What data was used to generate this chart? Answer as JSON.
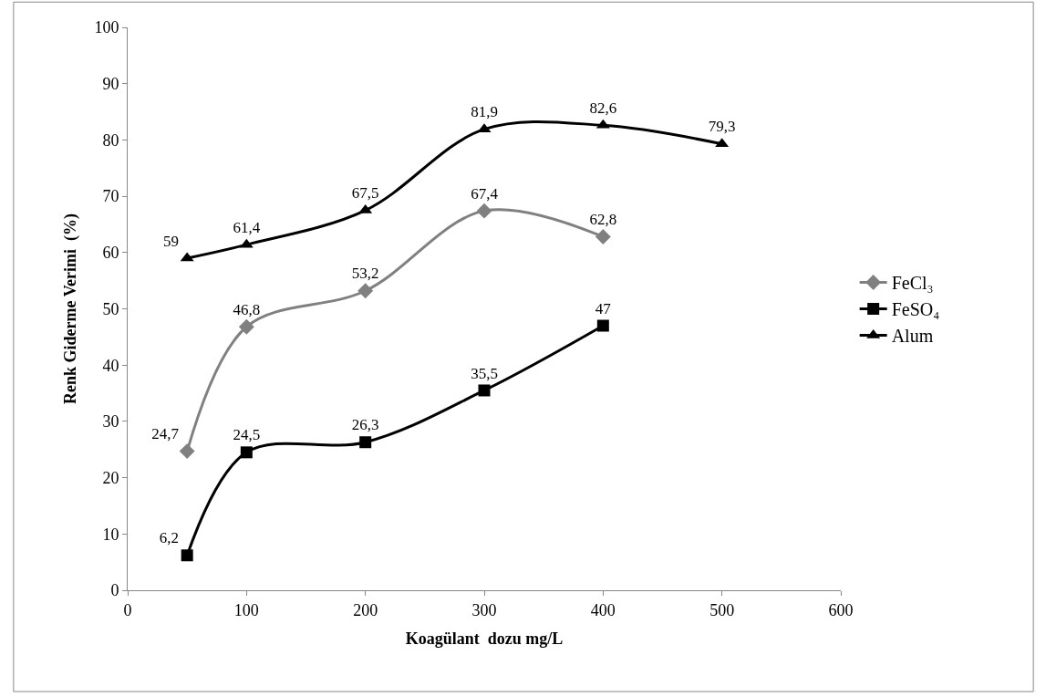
{
  "chart_data": {
    "type": "line",
    "xlabel": "Koagülant  dozu mg/L",
    "ylabel": "Renk Giderme Verimi  (%)",
    "xlim": [
      0,
      600
    ],
    "xticks": [
      0,
      100,
      200,
      300,
      400,
      500,
      600
    ],
    "ylim": [
      0,
      100
    ],
    "yticks": [
      0,
      10,
      20,
      30,
      40,
      50,
      60,
      70,
      80,
      90,
      100
    ],
    "legend": "right",
    "line_style": "solid",
    "series": [
      {
        "name": "FeCl₃",
        "color": "#808080",
        "marker": "diamond",
        "x": [
          50,
          100,
          200,
          300,
          400
        ],
        "values": [
          24.7,
          46.8,
          53.2,
          67.4,
          62.8
        ],
        "value_labels": [
          "24,7",
          "46,8",
          "53,2",
          "67,4",
          "62,8"
        ]
      },
      {
        "name": "FeSO₄",
        "color": "#000000",
        "marker": "square",
        "x": [
          50,
          100,
          200,
          300,
          400
        ],
        "values": [
          6.2,
          24.5,
          26.3,
          35.5,
          47
        ],
        "value_labels": [
          "6,2",
          "24,5",
          "26,3",
          "35,5",
          "47"
        ]
      },
      {
        "name": "Alum",
        "color": "#000000",
        "marker": "triangle",
        "x": [
          50,
          100,
          200,
          300,
          400,
          500
        ],
        "values": [
          59,
          61.4,
          67.5,
          81.9,
          82.6,
          79.3
        ],
        "value_labels": [
          "59",
          "61,4",
          "67,5",
          "81,9",
          "82,6",
          "79,3"
        ]
      }
    ]
  }
}
